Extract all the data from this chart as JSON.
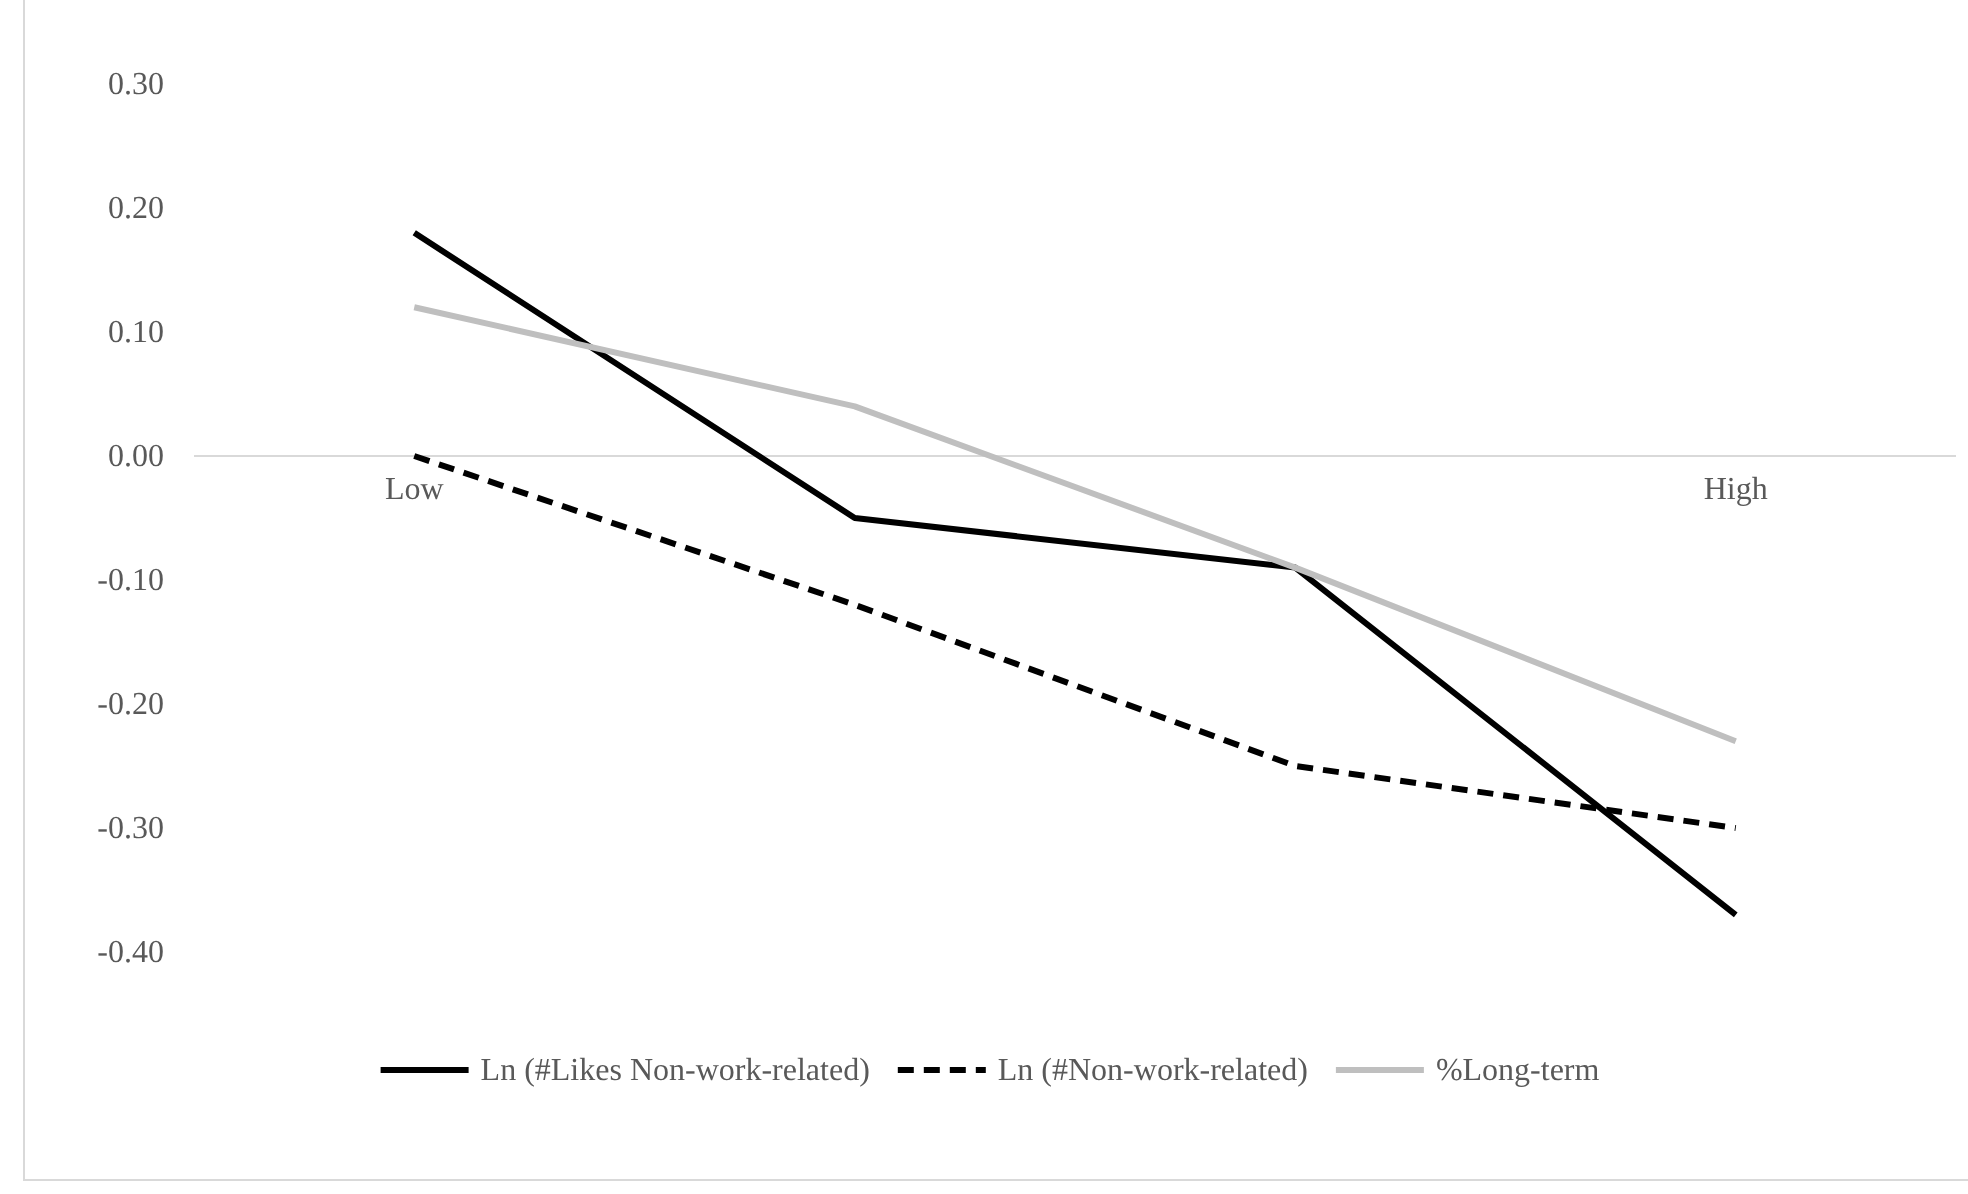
{
  "chart_data": {
    "type": "line",
    "categories": [
      "Low",
      null,
      null,
      "High"
    ],
    "series": [
      {
        "name": "Ln (#Likes Non-work-related)",
        "color": "#000000",
        "values": [
          0.18,
          -0.05,
          -0.09,
          -0.37
        ],
        "line_style": "solid"
      },
      {
        "name": "Ln (#Non-work-related)",
        "color": "#000000",
        "values": [
          0.0,
          -0.12,
          -0.25,
          -0.3
        ],
        "line_style": "dashed"
      },
      {
        "name": "%Long-term",
        "color": "#bfbfbf",
        "values": [
          0.12,
          0.04,
          -0.09,
          -0.23
        ],
        "line_style": "solid"
      }
    ],
    "ylim": [
      -0.4,
      0.3
    ],
    "yticks": [
      {
        "value": 0.3,
        "label": "0.30"
      },
      {
        "value": 0.2,
        "label": "0.20"
      },
      {
        "value": 0.1,
        "label": "0.10"
      },
      {
        "value": 0,
        "label": "0.00"
      },
      {
        "value": -0.1,
        "label": "-0.10"
      },
      {
        "value": -0.2,
        "label": "-0.20"
      },
      {
        "value": -0.3,
        "label": "-0.30"
      },
      {
        "value": -0.4,
        "label": "-0.40"
      }
    ],
    "grid": false,
    "legend": "bottom",
    "marker": "none"
  }
}
